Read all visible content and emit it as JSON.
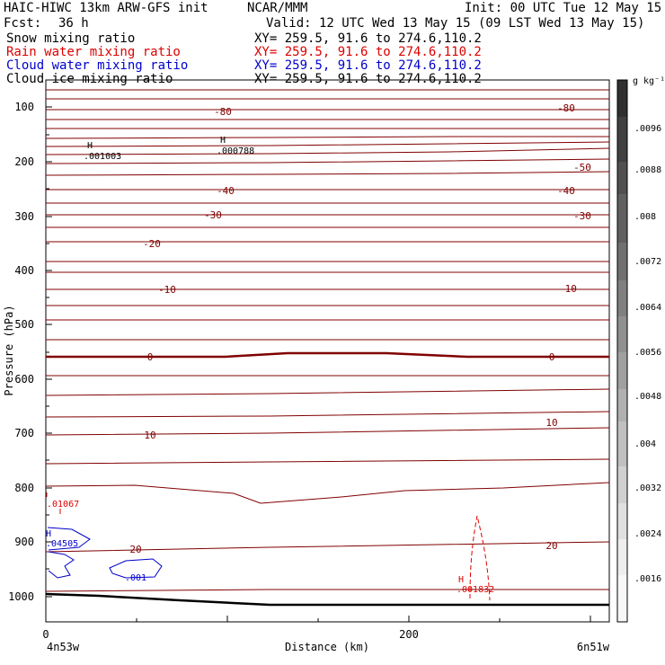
{
  "header": {
    "model_line": "HAIC-HIWC 13km ARW-GFS init",
    "org": "NCAR/MMM",
    "init": "Init: 00 UTC Tue 12 May 15",
    "fcst_label": "Fcst:",
    "fcst_value": "36 h",
    "valid": "Valid: 12 UTC Wed 13 May 15 (09 LST Wed 13 May 15)",
    "fields": [
      {
        "name": "Snow mixing ratio",
        "xy": "XY= 259.5, 91.6 to 274.6,110.2",
        "color": "#000000"
      },
      {
        "name": "Rain water mixing ratio",
        "xy": "XY= 259.5, 91.6 to 274.6,110.2",
        "color": "#dd0000"
      },
      {
        "name": "Cloud water mixing ratio",
        "xy": "XY= 259.5, 91.6 to 274.6,110.2",
        "color": "#0000cc"
      },
      {
        "name": "Cloud ice mixing ratio",
        "xy": "XY= 259.5, 91.6 to 274.6,110.2",
        "color": "#000000"
      }
    ]
  },
  "chart_data": {
    "type": "cross-section contour",
    "ylabel": "Pressure (hPa)",
    "xlabel": "Distance (km)",
    "y_ticks": [
      "100",
      "200",
      "300",
      "400",
      "500",
      "600",
      "700",
      "800",
      "900",
      "1000"
    ],
    "x_ticks": [
      "0",
      "200"
    ],
    "x_start_label": "4n53w",
    "x_end_label": "6n51w",
    "colorbar_unit": "g kg⁻¹",
    "colorbar_ticks": [
      ".0096",
      ".0088",
      ".008",
      ".0072",
      ".0064",
      ".0056",
      ".0048",
      ".004",
      ".0032",
      ".0024",
      ".0016"
    ],
    "temperature_contour_labels": [
      "-80",
      "-80",
      "-50",
      "-40",
      "-40",
      "-30",
      "-30",
      "-20",
      "-10",
      "-10",
      "0",
      "0",
      "10",
      "10",
      "20",
      "20"
    ],
    "maxima_labels": [
      {
        "marker": "H",
        "value": ".001003",
        "color": "#000000"
      },
      {
        "marker": "H",
        "value": ".000788",
        "color": "#000000"
      },
      {
        "marker": "",
        "value": ".01067",
        "color": "#dd0000"
      },
      {
        "marker": "H",
        "value": ".04505",
        "color": "#0000cc"
      },
      {
        "marker": "",
        "value": ".001",
        "color": "#0000cc"
      },
      {
        "marker": "H",
        "value": ".001832",
        "color": "#dd0000"
      }
    ],
    "colors": {
      "temperature": "#800000",
      "terrain": "#000000",
      "rain": "#dd0000",
      "cloud_water": "#0000cc"
    }
  }
}
